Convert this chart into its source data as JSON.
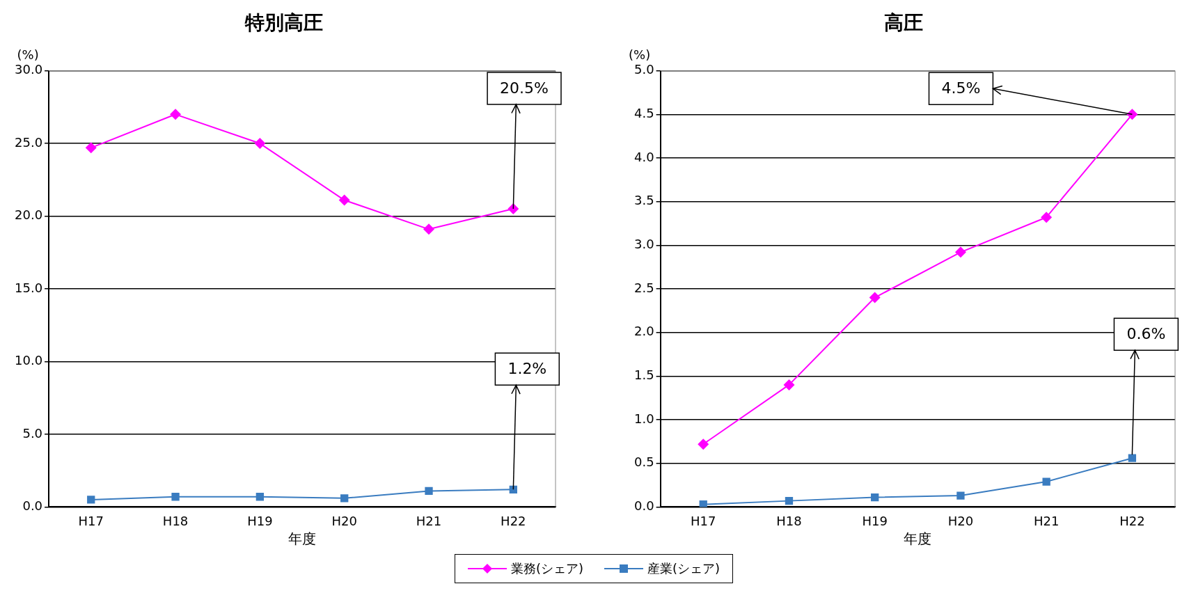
{
  "chart_data": [
    {
      "type": "line",
      "title": "特別高圧",
      "xlabel": "年度",
      "ylabel": "(%)",
      "categories": [
        "H17",
        "H18",
        "H19",
        "H20",
        "H21",
        "H22"
      ],
      "series": [
        {
          "name": "業務(シェア)",
          "color": "#ff00ff",
          "marker": "diamond",
          "values": [
            24.7,
            27.0,
            25.0,
            21.1,
            19.1,
            20.5
          ]
        },
        {
          "name": "産業(シェア)",
          "color": "#3a7cc0",
          "marker": "square",
          "values": [
            0.5,
            0.7,
            0.7,
            0.6,
            1.1,
            1.2
          ]
        }
      ],
      "ylim": [
        0,
        30
      ],
      "yticks": [
        {
          "value": 0,
          "label": "0.0"
        },
        {
          "value": 5,
          "label": "5.0"
        },
        {
          "value": 10,
          "label": "10.0"
        },
        {
          "value": 15,
          "label": "15.0"
        },
        {
          "value": 20,
          "label": "20.0"
        },
        {
          "value": 25,
          "label": "25.0"
        },
        {
          "value": 30,
          "label": "30.0"
        }
      ],
      "grid": "y",
      "legend": "bottom",
      "annotations": [
        {
          "text": "20.5%",
          "x": "H22",
          "y": 20.5
        },
        {
          "text": "1.2%",
          "x": "H22",
          "y": 1.2
        }
      ]
    },
    {
      "type": "line",
      "title": "高圧",
      "xlabel": "年度",
      "ylabel": "(%)",
      "categories": [
        "H17",
        "H18",
        "H19",
        "H20",
        "H21",
        "H22"
      ],
      "series": [
        {
          "color": "#ff00ff",
          "marker": "diamond",
          "values": [
            0.72,
            1.4,
            2.4,
            2.92,
            3.32,
            4.5
          ]
        },
        {
          "color": "#3a7cc0",
          "marker": "square",
          "values": [
            0.03,
            0.07,
            0.11,
            0.13,
            0.29,
            0.56
          ]
        }
      ],
      "ylim": [
        0,
        5
      ],
      "yticks": [
        {
          "value": 0,
          "label": "0.0"
        },
        {
          "value": 0.5,
          "label": "0.5"
        },
        {
          "value": 1,
          "label": "1.0"
        },
        {
          "value": 1.5,
          "label": "1.5"
        },
        {
          "value": 2,
          "label": "2.0"
        },
        {
          "value": 2.5,
          "label": "2.5"
        },
        {
          "value": 3,
          "label": "3.0"
        },
        {
          "value": 3.5,
          "label": "3.5"
        },
        {
          "value": 4,
          "label": "4.0"
        },
        {
          "value": 4.5,
          "label": "4.5"
        },
        {
          "value": 5,
          "label": "5.0"
        }
      ],
      "grid": "y",
      "annotations": [
        {
          "text": "4.5%",
          "x": "H22",
          "y": 4.5
        },
        {
          "text": "0.6%",
          "x": "H22",
          "y": 0.6
        }
      ]
    }
  ]
}
